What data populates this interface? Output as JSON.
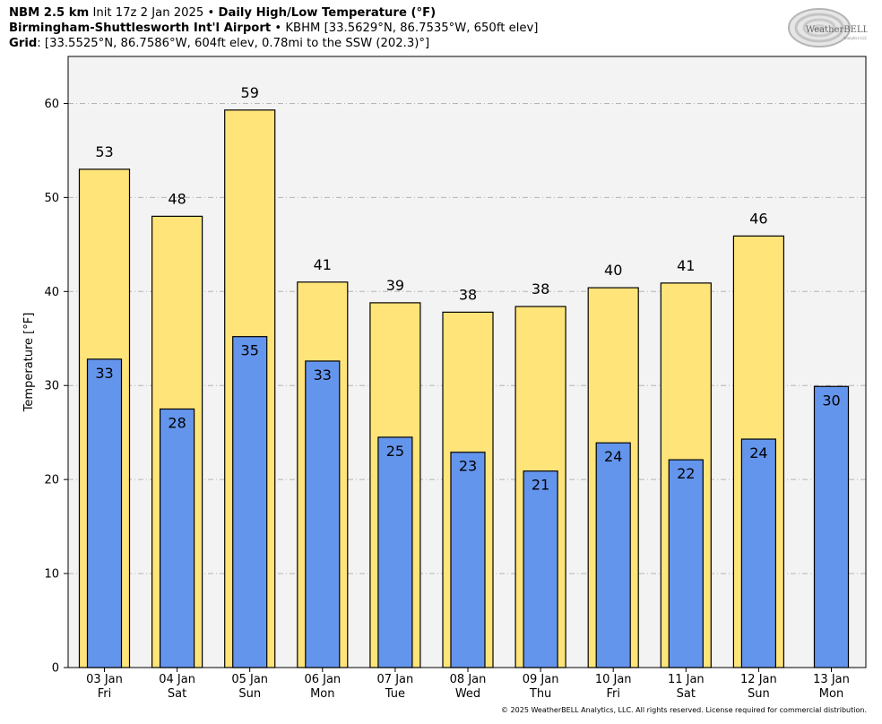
{
  "header": {
    "model": "NBM 2.5 km",
    "init": "Init 17z 2 Jan 2025",
    "product": "Daily High/Low Temperature (°F)",
    "station": "Birmingham-Shuttlesworth Int'l Airport",
    "station_id": "KBHM",
    "station_detail": "[33.5629°N, 86.7535°W, 650ft elev]",
    "grid_label": "Grid",
    "grid_detail": ": [33.5525°N, 86.7586°W, 604ft elev, 0.78mi to the SSW (202.3)°]",
    "bullet": "•"
  },
  "logo": {
    "text": "WeatherBELL",
    "subtext": "Analytics LLC"
  },
  "copyright": "© 2025 WeatherBELL Analytics, LLC. All rights reserved. License required for commercial distribution.",
  "chart_data": {
    "type": "bar",
    "ylabel": "Temperature [°F]",
    "ylim": [
      0,
      65
    ],
    "yticks": [
      0,
      10,
      20,
      30,
      40,
      50,
      60
    ],
    "grid": true,
    "categories": [
      {
        "date": "03 Jan",
        "day": "Fri"
      },
      {
        "date": "04 Jan",
        "day": "Sat"
      },
      {
        "date": "05 Jan",
        "day": "Sun"
      },
      {
        "date": "06 Jan",
        "day": "Mon"
      },
      {
        "date": "07 Jan",
        "day": "Tue"
      },
      {
        "date": "08 Jan",
        "day": "Wed"
      },
      {
        "date": "09 Jan",
        "day": "Thu"
      },
      {
        "date": "10 Jan",
        "day": "Fri"
      },
      {
        "date": "11 Jan",
        "day": "Sat"
      },
      {
        "date": "12 Jan",
        "day": "Sun"
      },
      {
        "date": "13 Jan",
        "day": "Mon"
      }
    ],
    "series": [
      {
        "key": "high",
        "color": "#ffe47a",
        "values": [
          53.0,
          48.0,
          59.3,
          41.0,
          38.8,
          37.8,
          38.4,
          40.4,
          40.9,
          45.9,
          null
        ],
        "labels": [
          "53",
          "48",
          "59",
          "41",
          "39",
          "38",
          "38",
          "40",
          "41",
          "46",
          ""
        ]
      },
      {
        "key": "low",
        "color": "#6495ed",
        "values": [
          32.8,
          27.5,
          35.2,
          32.6,
          24.5,
          22.9,
          20.9,
          23.9,
          22.1,
          24.3,
          29.9
        ],
        "labels": [
          "33",
          "28",
          "35",
          "33",
          "25",
          "23",
          "21",
          "24",
          "22",
          "24",
          "30"
        ]
      }
    ],
    "plot_bg": "#f3f3f3"
  }
}
